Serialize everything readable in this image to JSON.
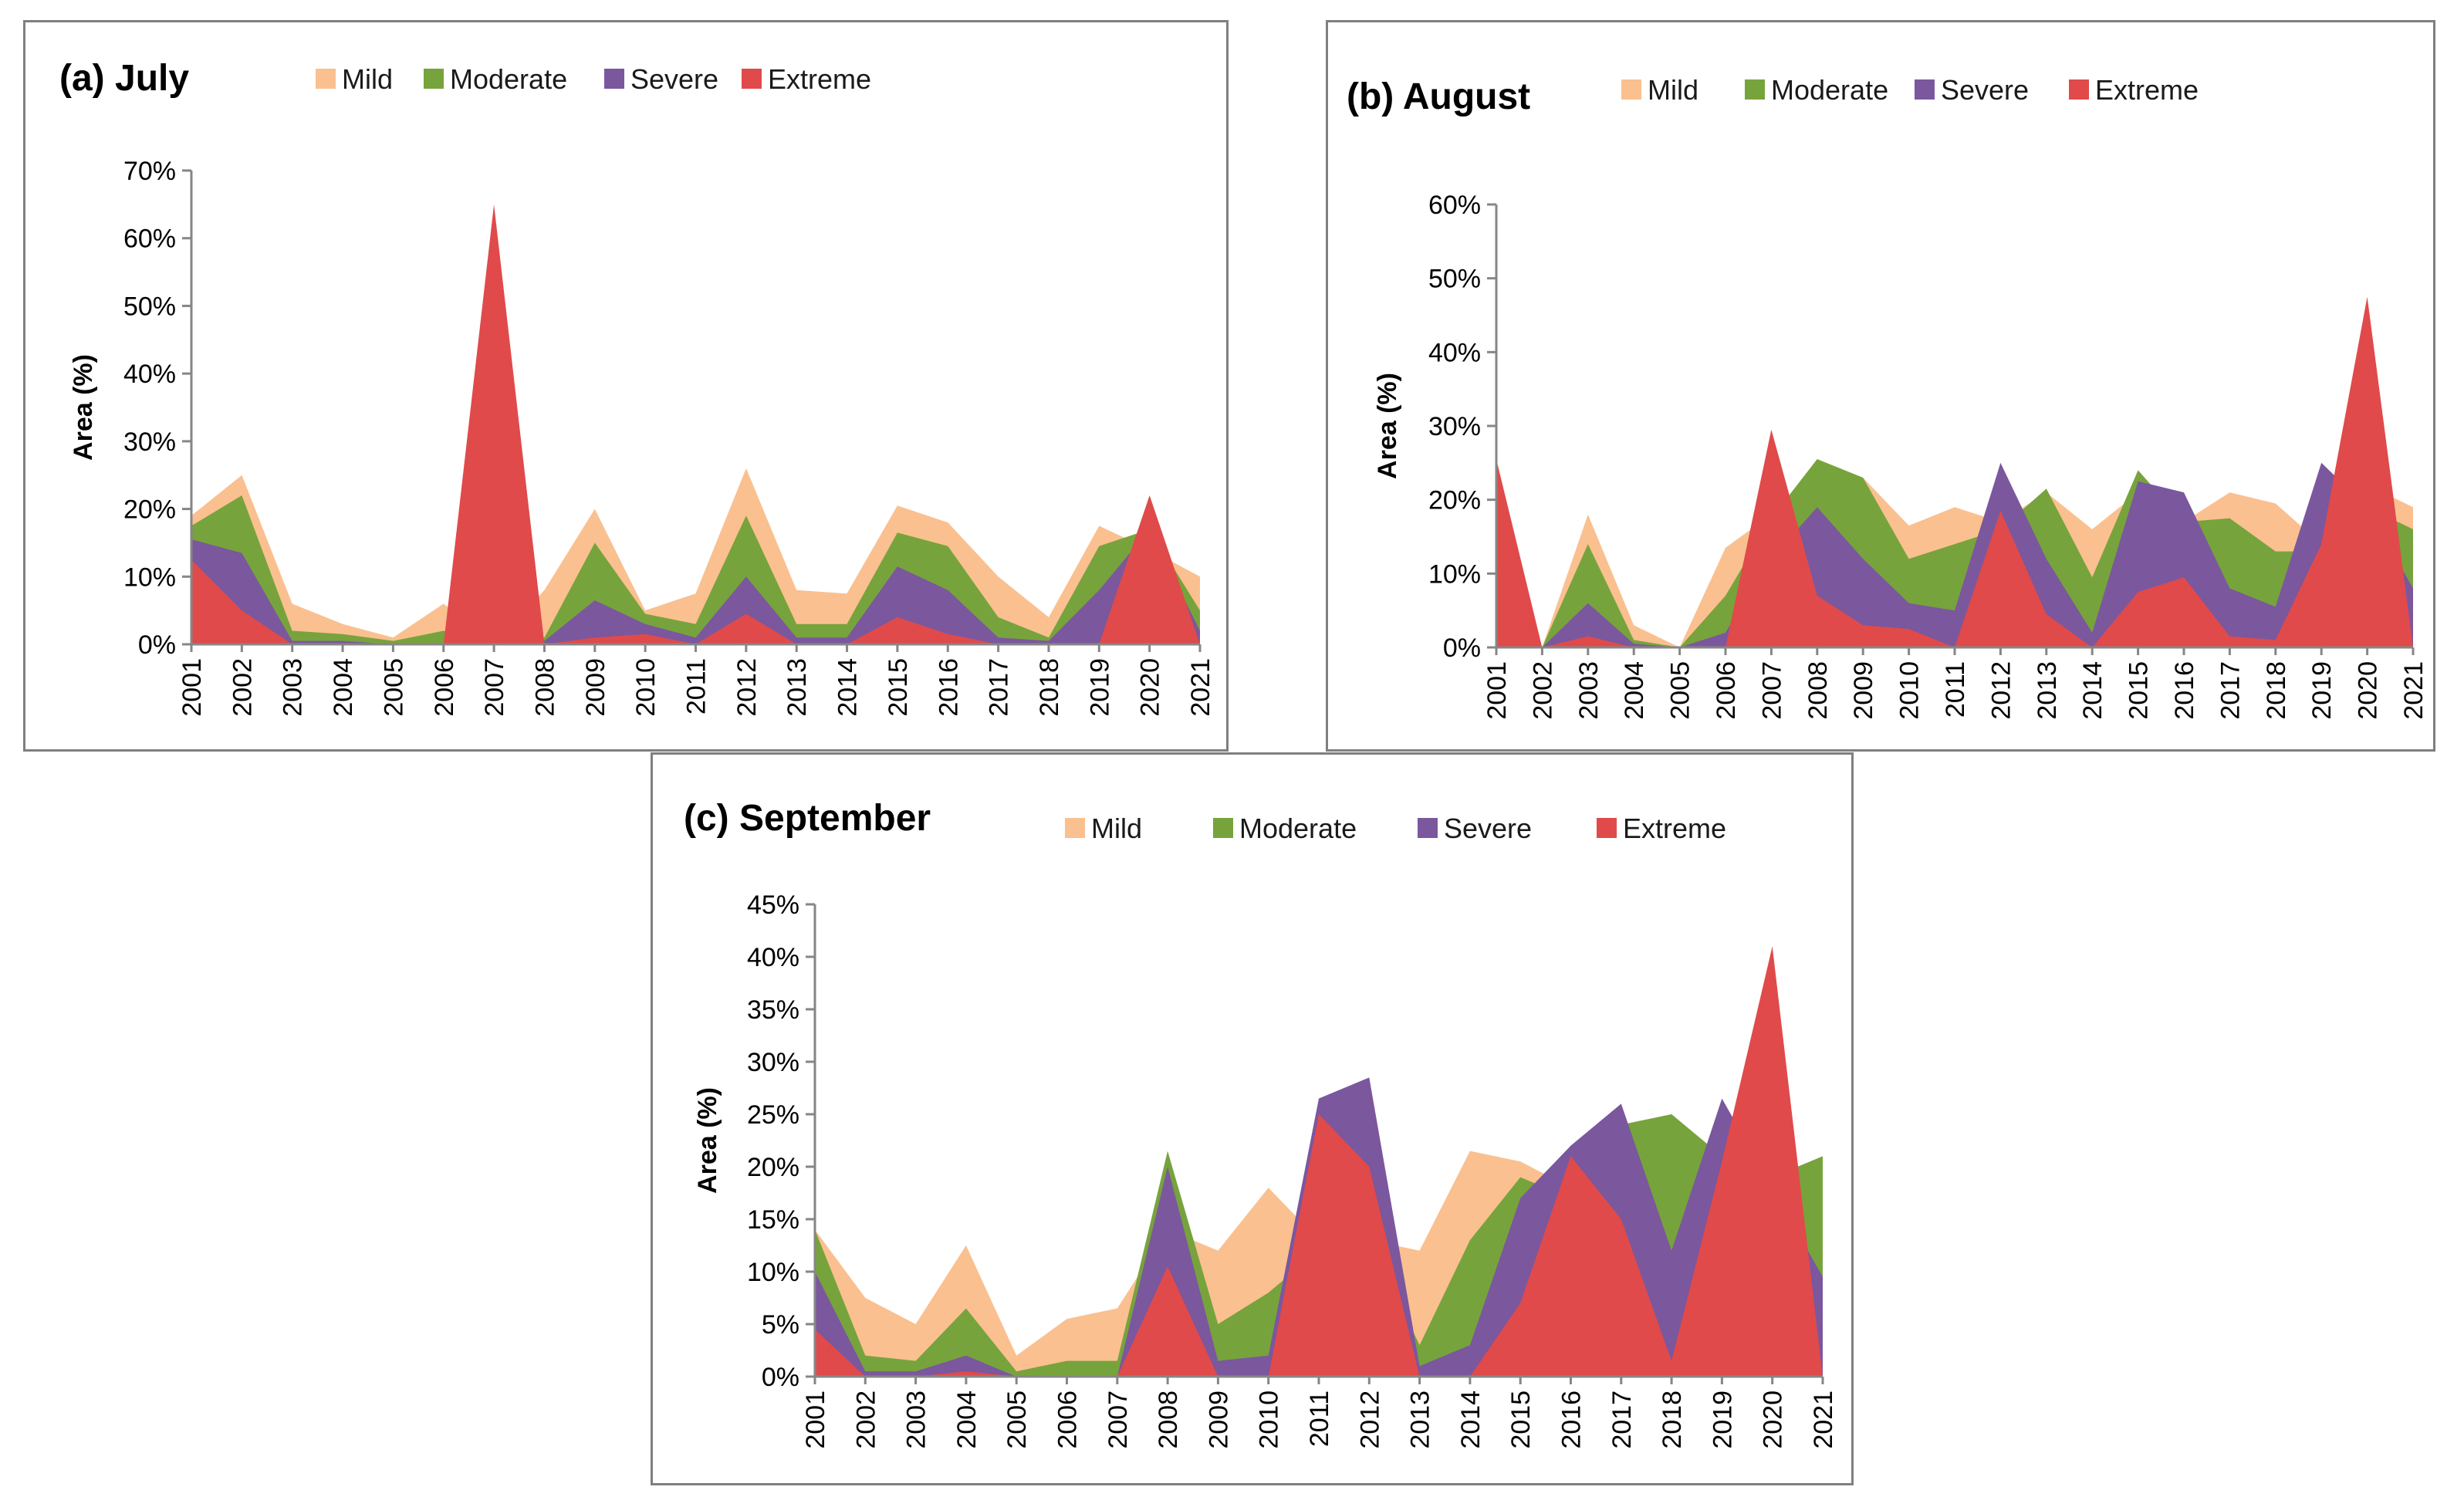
{
  "chart_data": [
    {
      "type": "area",
      "title": "(a) July",
      "xlabel": "",
      "ylabel": "Area (%)",
      "ylim": [
        0,
        70
      ],
      "ytick_step": 10,
      "ytick_labels": [
        "0%",
        "10%",
        "20%",
        "30%",
        "40%",
        "50%",
        "60%",
        "70%"
      ],
      "categories": [
        "2001",
        "2002",
        "2003",
        "2004",
        "2005",
        "2006",
        "2007",
        "2008",
        "2009",
        "2010",
        "2011",
        "2012",
        "2013",
        "2014",
        "2015",
        "2016",
        "2017",
        "2018",
        "2019",
        "2020",
        "2021"
      ],
      "legend_position": "top",
      "series": [
        {
          "name": "Mild",
          "color": "#fac090",
          "values": [
            19,
            25,
            6,
            3,
            1,
            6,
            0,
            8,
            20,
            5,
            7.5,
            26,
            8,
            7.5,
            20.5,
            18,
            10,
            4,
            17.5,
            14,
            10
          ]
        },
        {
          "name": "Moderate",
          "color": "#77a33c",
          "values": [
            17.5,
            22,
            2,
            1.5,
            0.5,
            2,
            0,
            1,
            15,
            4.5,
            3,
            19,
            3,
            3,
            16.5,
            14.5,
            4,
            1,
            14.5,
            17,
            5
          ]
        },
        {
          "name": "Severe",
          "color": "#7b579e",
          "values": [
            15.5,
            13.5,
            0.5,
            0.5,
            0,
            0,
            0,
            0.5,
            6.5,
            3,
            1,
            10,
            1,
            1,
            11.5,
            8,
            1,
            0.5,
            8,
            17,
            2
          ]
        },
        {
          "name": "Extreme",
          "color": "#e04a4a",
          "values": [
            12.5,
            5,
            0,
            0,
            0,
            0,
            65,
            0,
            1,
            1.5,
            0,
            4.5,
            0,
            0,
            4,
            1.5,
            0,
            0,
            0,
            22,
            0
          ]
        }
      ]
    },
    {
      "type": "area",
      "title": "(b) August",
      "xlabel": "",
      "ylabel": "Area (%)",
      "ylim": [
        0,
        60
      ],
      "ytick_step": 10,
      "ytick_labels": [
        "0%",
        "10%",
        "20%",
        "30%",
        "40%",
        "50%",
        "60%"
      ],
      "categories": [
        "2001",
        "2002",
        "2003",
        "2004",
        "2005",
        "2006",
        "2007",
        "2008",
        "2009",
        "2010",
        "2011",
        "2012",
        "2013",
        "2014",
        "2015",
        "2016",
        "2017",
        "2018",
        "2019",
        "2020",
        "2021"
      ],
      "legend_position": "top",
      "series": [
        {
          "name": "Mild",
          "color": "#fac090",
          "values": [
            20,
            0,
            18,
            3,
            0,
            13.5,
            18,
            20,
            23,
            16.5,
            19,
            17,
            21,
            16,
            21,
            17,
            21,
            19.5,
            14,
            22,
            19
          ]
        },
        {
          "name": "Moderate",
          "color": "#77a33c",
          "values": [
            18,
            0,
            14,
            1,
            0,
            7,
            17.5,
            25.5,
            23,
            12,
            14,
            16,
            21.5,
            9.5,
            24,
            17,
            17.5,
            13,
            13,
            19,
            16
          ]
        },
        {
          "name": "Severe",
          "color": "#7b579e",
          "values": [
            15,
            0,
            6,
            0.5,
            0,
            2,
            12,
            19,
            12,
            6,
            5,
            25,
            12,
            2,
            22.5,
            21,
            8,
            5.5,
            25,
            19,
            8
          ]
        },
        {
          "name": "Extreme",
          "color": "#e04a4a",
          "values": [
            25.5,
            0,
            1.5,
            0,
            0,
            0,
            29.5,
            7,
            3,
            2.5,
            0,
            18.5,
            4.5,
            0,
            7.5,
            9.5,
            1.5,
            1,
            14,
            47.5,
            0
          ]
        }
      ]
    },
    {
      "type": "area",
      "title": "(c) September",
      "xlabel": "",
      "ylabel": "Area (%)",
      "ylim": [
        0,
        45
      ],
      "ytick_step": 5,
      "ytick_labels": [
        "0%",
        "5%",
        "10%",
        "15%",
        "20%",
        "25%",
        "30%",
        "35%",
        "40%",
        "45%"
      ],
      "categories": [
        "2001",
        "2002",
        "2003",
        "2004",
        "2005",
        "2006",
        "2007",
        "2008",
        "2009",
        "2010",
        "2011",
        "2012",
        "2013",
        "2014",
        "2015",
        "2016",
        "2017",
        "2018",
        "2019",
        "2020",
        "2021"
      ],
      "legend_position": "top",
      "series": [
        {
          "name": "Mild",
          "color": "#fac090",
          "values": [
            14,
            7.5,
            5,
            12.5,
            2,
            5.5,
            6.5,
            14,
            12,
            18,
            13,
            13,
            12,
            21.5,
            20.5,
            18,
            18,
            18,
            19,
            18,
            19
          ]
        },
        {
          "name": "Moderate",
          "color": "#77a33c",
          "values": [
            14,
            2,
            1.5,
            6.5,
            0.5,
            1.5,
            1.5,
            21.5,
            5,
            8,
            12,
            13,
            3,
            13,
            19,
            17,
            24,
            25,
            21,
            19,
            21
          ]
        },
        {
          "name": "Severe",
          "color": "#7b579e",
          "values": [
            10,
            0.5,
            0.5,
            2,
            0,
            0,
            0,
            20,
            1.5,
            2,
            26.5,
            28.5,
            1,
            3,
            17,
            22,
            26,
            12,
            26.5,
            18,
            9.5
          ]
        },
        {
          "name": "Extreme",
          "color": "#e04a4a",
          "values": [
            4.5,
            0,
            0,
            0.5,
            0,
            0,
            0,
            10.5,
            0,
            0,
            25,
            20,
            0,
            0,
            7,
            21,
            15,
            1.5,
            20.5,
            41,
            0
          ]
        }
      ]
    }
  ]
}
